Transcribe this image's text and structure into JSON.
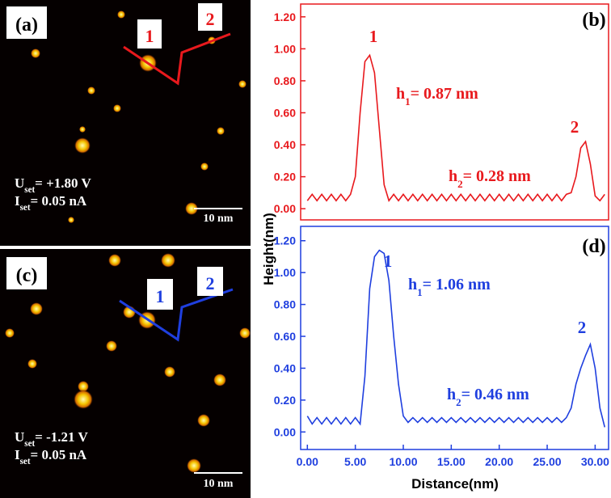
{
  "panels": [
    {
      "label": "(a)",
      "markers": [
        "1",
        "2"
      ],
      "conditions": [
        {
          "main": "U",
          "sub": "set",
          "rest": "= +1.80 V"
        },
        {
          "main": "I",
          "sub": "set",
          "rest": "= 0.05 nA"
        }
      ],
      "scale_bar": "10 nm"
    },
    {
      "label": "(c)",
      "markers": [
        "1",
        "2"
      ],
      "conditions": [
        {
          "main": "U",
          "sub": "set",
          "rest": "= -1.21 V"
        },
        {
          "main": "I",
          "sub": "set",
          "rest": "= 0.05 nA"
        }
      ],
      "scale_bar": "10 nm"
    }
  ],
  "shared": {
    "y_label": "Height(nm)",
    "x_label": "Distance(nm)"
  },
  "chart_data": [
    {
      "type": "line",
      "panel_label": "(b)",
      "color": "#e8191d",
      "peak_labels": [
        "1",
        "2"
      ],
      "heights": [
        {
          "main": "h",
          "sub": "1",
          "rest": "= 0.87 nm"
        },
        {
          "main": "h",
          "sub": "2",
          "rest": "= 0.28 nm"
        }
      ],
      "x": [
        0,
        0.5,
        1,
        1.5,
        2,
        2.5,
        3,
        3.5,
        4,
        4.5,
        5,
        5.5,
        6,
        6.5,
        7,
        7.5,
        8,
        8.5,
        9,
        9.5,
        10,
        10.5,
        11,
        11.5,
        12,
        12.5,
        13,
        13.5,
        14,
        14.5,
        15,
        15.5,
        16,
        16.5,
        17,
        17.5,
        18,
        18.5,
        19,
        19.5,
        20,
        20.5,
        21,
        21.5,
        22,
        22.5,
        23,
        23.5,
        24,
        24.5,
        25,
        25.5,
        26,
        26.5,
        27,
        27.5,
        28,
        28.5,
        29,
        29.5,
        30,
        30.5,
        31
      ],
      "values": [
        0.05,
        0.09,
        0.05,
        0.09,
        0.05,
        0.09,
        0.05,
        0.09,
        0.05,
        0.09,
        0.2,
        0.6,
        0.92,
        0.96,
        0.85,
        0.5,
        0.15,
        0.05,
        0.09,
        0.05,
        0.09,
        0.05,
        0.09,
        0.05,
        0.09,
        0.05,
        0.09,
        0.05,
        0.09,
        0.05,
        0.09,
        0.05,
        0.09,
        0.05,
        0.09,
        0.05,
        0.09,
        0.05,
        0.09,
        0.05,
        0.09,
        0.05,
        0.09,
        0.05,
        0.09,
        0.05,
        0.09,
        0.05,
        0.09,
        0.05,
        0.09,
        0.05,
        0.09,
        0.05,
        0.09,
        0.1,
        0.2,
        0.38,
        0.42,
        0.28,
        0.08,
        0.05,
        0.09
      ],
      "xlim": [
        -0.7,
        31.4
      ],
      "ylim": [
        -0.07,
        1.28
      ],
      "yticks": [
        {
          "value": 0,
          "label": "0.00"
        },
        {
          "value": 0.2,
          "label": "0.20"
        },
        {
          "value": 0.4,
          "label": "0.40"
        },
        {
          "value": 0.6,
          "label": "0.60"
        },
        {
          "value": 0.8,
          "label": "0.80"
        },
        {
          "value": 1,
          "label": "1.00"
        },
        {
          "value": 1.2,
          "label": "1.20"
        }
      ]
    },
    {
      "type": "line",
      "panel_label": "(d)",
      "color": "#1f3fdf",
      "peak_labels": [
        "1",
        "2"
      ],
      "heights": [
        {
          "main": "h",
          "sub": "1",
          "rest": "= 1.06 nm"
        },
        {
          "main": "h",
          "sub": "2",
          "rest": "= 0.46 nm"
        }
      ],
      "x": [
        0,
        0.5,
        1,
        1.5,
        2,
        2.5,
        3,
        3.5,
        4,
        4.5,
        5,
        5.5,
        6,
        6.5,
        7,
        7.5,
        8,
        8.5,
        9,
        9.5,
        10,
        10.5,
        11,
        11.5,
        12,
        12.5,
        13,
        13.5,
        14,
        14.5,
        15,
        15.5,
        16,
        16.5,
        17,
        17.5,
        18,
        18.5,
        19,
        19.5,
        20,
        20.5,
        21,
        21.5,
        22,
        22.5,
        23,
        23.5,
        24,
        24.5,
        25,
        25.5,
        26,
        26.5,
        27,
        27.5,
        28,
        28.5,
        29,
        29.5,
        30,
        30.5,
        31
      ],
      "values": [
        0.1,
        0.05,
        0.09,
        0.05,
        0.09,
        0.05,
        0.09,
        0.05,
        0.09,
        0.05,
        0.09,
        0.05,
        0.35,
        0.9,
        1.1,
        1.14,
        1.12,
        0.95,
        0.6,
        0.3,
        0.1,
        0.06,
        0.09,
        0.06,
        0.09,
        0.06,
        0.09,
        0.06,
        0.09,
        0.06,
        0.09,
        0.06,
        0.09,
        0.06,
        0.09,
        0.06,
        0.09,
        0.06,
        0.09,
        0.06,
        0.09,
        0.06,
        0.09,
        0.06,
        0.09,
        0.06,
        0.09,
        0.06,
        0.09,
        0.06,
        0.09,
        0.06,
        0.09,
        0.06,
        0.09,
        0.15,
        0.3,
        0.4,
        0.48,
        0.55,
        0.4,
        0.15,
        0.03
      ],
      "xlim": [
        -0.7,
        31.4
      ],
      "ylim": [
        -0.11,
        1.29
      ],
      "xticks": [
        {
          "value": 0,
          "label": "0.00"
        },
        {
          "value": 5,
          "label": "5.00"
        },
        {
          "value": 10,
          "label": "10.00"
        },
        {
          "value": 15,
          "label": "15.00"
        },
        {
          "value": 20,
          "label": "20.00"
        },
        {
          "value": 25,
          "label": "25.00"
        },
        {
          "value": 30,
          "label": "30.00"
        }
      ],
      "yticks": [
        {
          "value": 0,
          "label": "0.00"
        },
        {
          "value": 0.2,
          "label": "0.20"
        },
        {
          "value": 0.4,
          "label": "0.40"
        },
        {
          "value": 0.6,
          "label": "0.60"
        },
        {
          "value": 0.8,
          "label": "0.80"
        },
        {
          "value": 1,
          "label": "1.00"
        },
        {
          "value": 1.2,
          "label": "1.20"
        }
      ]
    }
  ]
}
